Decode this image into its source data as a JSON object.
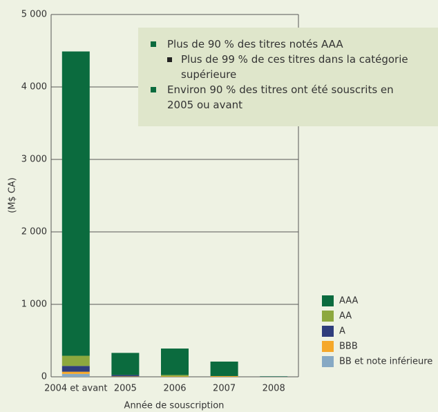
{
  "chart_data": {
    "type": "stacked_bar",
    "y_label": "(M$ CA)",
    "x_label": "Année de souscription",
    "categories": [
      "2004 et avant",
      "2005",
      "2006",
      "2007",
      "2008"
    ],
    "series": [
      {
        "name": "BB et note inférieure",
        "color": "#86a9c4",
        "values": [
          40,
          0,
          0,
          0,
          3
        ]
      },
      {
        "name": "BBB",
        "color": "#f5a82a",
        "values": [
          30,
          5,
          5,
          10,
          0
        ]
      },
      {
        "name": "A",
        "color": "#2f3d7c",
        "values": [
          80,
          20,
          0,
          0,
          0
        ]
      },
      {
        "name": "AA",
        "color": "#8da83e",
        "values": [
          140,
          0,
          20,
          0,
          0
        ]
      },
      {
        "name": "AAA",
        "color": "#0b6b3e",
        "values": [
          4200,
          305,
          365,
          200,
          5
        ]
      }
    ],
    "ylim": [
      0,
      5000
    ],
    "yticks": [
      0,
      {
        "value": 1000,
        "label": "1 000"
      },
      {
        "value": 2000,
        "label": "2 000"
      },
      {
        "value": 3000,
        "label": "3 000"
      },
      {
        "value": 4000,
        "label": "4 000"
      },
      {
        "value": 5000,
        "label": "5 000"
      }
    ],
    "grid": true,
    "notes": [
      {
        "text": "Plus de 90 % des titres notés AAA",
        "sub": [
          "Plus de 99 % de ces titres dans la catégorie supérieure"
        ]
      },
      {
        "text": "Environ 90 % des titres ont été souscrits en 2005 ou avant",
        "sub": []
      }
    ]
  }
}
